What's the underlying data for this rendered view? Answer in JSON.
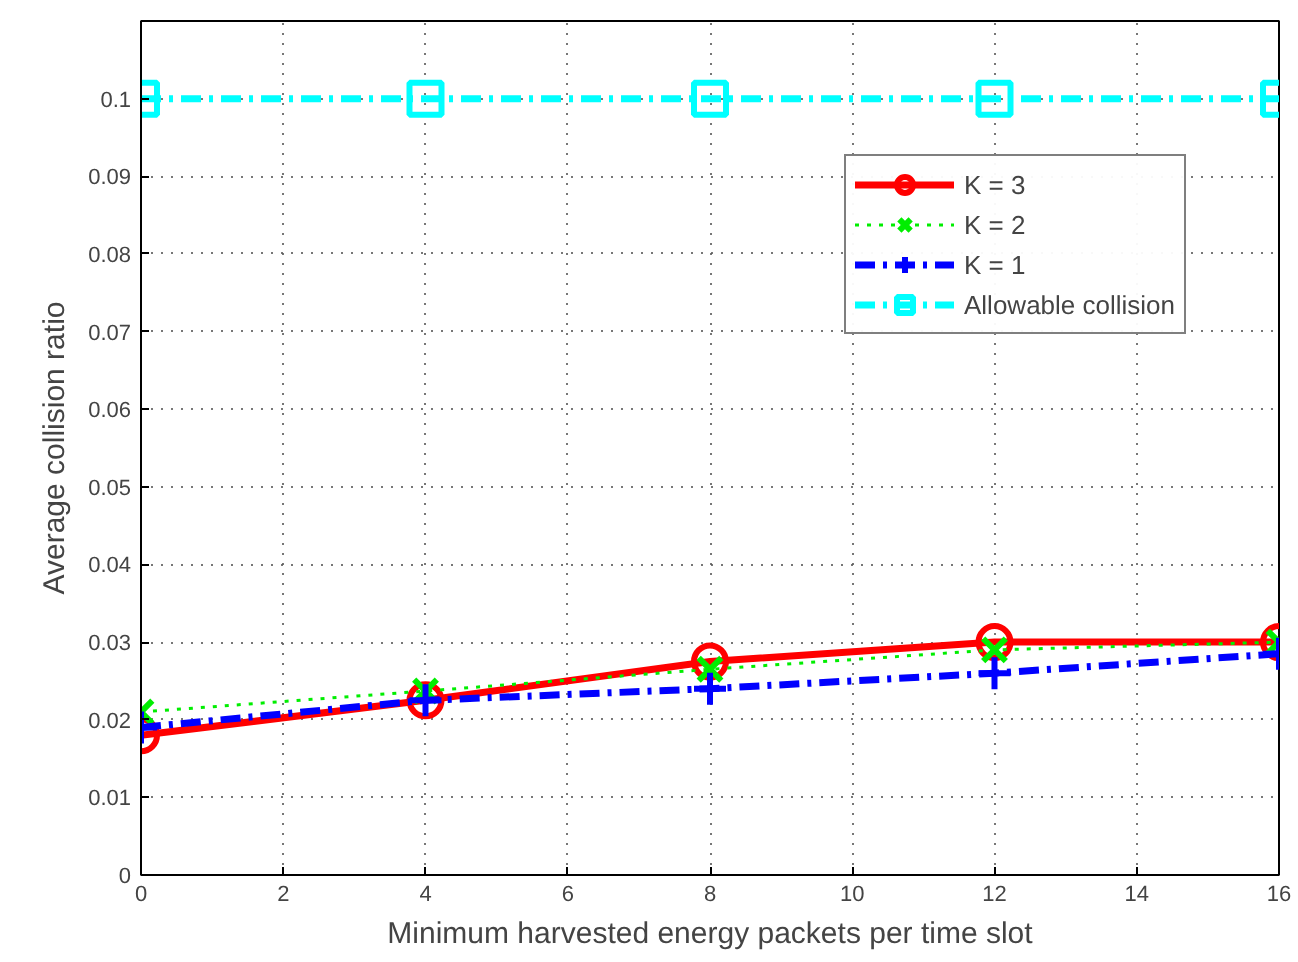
{
  "chart_data": {
    "type": "line",
    "xlabel": "Minimum harvested energy packets per time slot",
    "ylabel": "Average collision ratio",
    "x": [
      0,
      4,
      8,
      12,
      16
    ],
    "series": [
      {
        "name": "K = 3",
        "color": "#ff0000",
        "values": [
          0.018,
          0.0225,
          0.0275,
          0.03,
          0.03
        ],
        "marker": "circle",
        "line_style": "solid"
      },
      {
        "name": "K = 2",
        "color": "#00ee00",
        "values": [
          0.021,
          0.0237,
          0.0265,
          0.029,
          0.03
        ],
        "marker": "x",
        "line_style": "dotted"
      },
      {
        "name": "K = 1",
        "color": "#0000ff",
        "values": [
          0.019,
          0.0225,
          0.024,
          0.026,
          0.0285
        ],
        "marker": "cross",
        "line_style": "dashdot"
      },
      {
        "name": "Allowable collision",
        "color": "#00ffff",
        "values": [
          0.1,
          0.1,
          0.1,
          0.1,
          0.1
        ],
        "marker": "square",
        "line_style": "dashdot"
      }
    ],
    "xlim": [
      0,
      16
    ],
    "xticks": [
      0,
      2,
      4,
      6,
      8,
      10,
      12,
      14,
      16
    ],
    "ylim": [
      0,
      0.11
    ],
    "yticks": [
      0,
      0.01,
      0.02,
      0.03,
      0.04,
      0.05,
      0.06,
      0.07,
      0.08,
      0.09,
      0.1
    ],
    "grid": true,
    "legend": "top right"
  }
}
